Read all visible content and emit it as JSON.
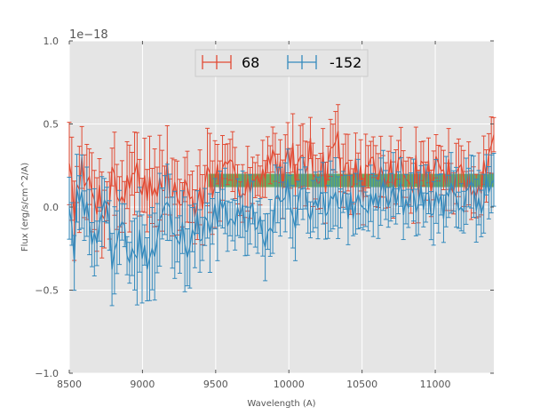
{
  "chart_data": {
    "type": "line",
    "xlabel": "Wavelength (A)",
    "ylabel": "Flux (erg/s/cm^2/A)",
    "offset_text": "1e−18",
    "xlim": [
      8500,
      11400
    ],
    "ylim": [
      -1.0,
      1.0
    ],
    "x_ticks": [
      {
        "value": 8500,
        "label": "8500"
      },
      {
        "value": 9000,
        "label": "9000"
      },
      {
        "value": 9500,
        "label": "9500"
      },
      {
        "value": 10000,
        "label": "10000"
      },
      {
        "value": 10500,
        "label": "10500"
      },
      {
        "value": 11000,
        "label": "11000"
      }
    ],
    "y_ticks": [
      {
        "value": 1.0,
        "label": "1.0"
      },
      {
        "value": 0.5,
        "label": "0.5"
      },
      {
        "value": 0.0,
        "label": "0.0"
      },
      {
        "value": -0.5,
        "label": "−0.5"
      },
      {
        "value": -1.0,
        "label": "−1.0"
      }
    ],
    "grid": true,
    "legend_position": "top-center",
    "band": {
      "x_start": 9450,
      "x_end": 11400,
      "y_low": 0.12,
      "y_high": 0.2,
      "color": "#4a9a3a"
    },
    "series": [
      {
        "name": "68",
        "color": "#e24a33",
        "x_start": 8500,
        "x_end": 11400,
        "anchors_x": [
          8500,
          8530,
          8560,
          8600,
          8650,
          8700,
          8750,
          8800,
          8850,
          8900,
          8950,
          9000,
          9050,
          9100,
          9150,
          9200,
          9250,
          9300,
          9350,
          9400,
          9450,
          9500,
          9600,
          9700,
          9800,
          9850,
          9900,
          9950,
          10000,
          10050,
          10100,
          10150,
          10200,
          10250,
          10300,
          10350,
          10400,
          10500,
          10600,
          10700,
          10800,
          10900,
          11000,
          11100,
          11200,
          11300,
          11360,
          11400
        ],
        "anchors_y": [
          0.33,
          0.0,
          0.24,
          0.14,
          0.1,
          0.05,
          0.02,
          0.2,
          0.05,
          0.1,
          0.28,
          0.15,
          0.12,
          0.06,
          0.18,
          0.12,
          0.03,
          0.08,
          0.05,
          0.02,
          0.2,
          0.15,
          0.16,
          0.18,
          0.14,
          0.2,
          0.27,
          0.22,
          0.3,
          0.24,
          0.34,
          0.3,
          0.26,
          0.2,
          0.42,
          0.3,
          0.22,
          0.16,
          0.18,
          0.2,
          0.21,
          0.18,
          0.22,
          0.18,
          0.12,
          0.2,
          0.22,
          0.43
        ],
        "noise": 0.13,
        "err_lo": 0.1,
        "err_hi": 0.22,
        "seed": 7
      },
      {
        "name": "-152",
        "color": "#348abd",
        "x_start": 8500,
        "x_end": 11400,
        "anchors_x": [
          8500,
          8530,
          8560,
          8600,
          8650,
          8700,
          8750,
          8800,
          8850,
          8900,
          8950,
          9000,
          9050,
          9100,
          9150,
          9200,
          9250,
          9300,
          9350,
          9400,
          9450,
          9500,
          9600,
          9700,
          9800,
          9850,
          9900,
          9950,
          10000,
          10050,
          10100,
          10200,
          10300,
          10400,
          10500,
          10600,
          10700,
          10800,
          10900,
          11000,
          11100,
          11200,
          11300,
          11400
        ],
        "anchors_y": [
          0.05,
          -0.3,
          0.14,
          0.0,
          -0.18,
          -0.12,
          -0.05,
          -0.35,
          -0.15,
          -0.25,
          -0.3,
          -0.2,
          -0.35,
          -0.2,
          -0.1,
          -0.05,
          -0.12,
          -0.2,
          -0.15,
          -0.1,
          -0.2,
          -0.05,
          -0.05,
          -0.08,
          -0.08,
          -0.18,
          -0.05,
          0.05,
          0.1,
          -0.05,
          0.05,
          0.0,
          0.02,
          -0.02,
          0.02,
          0.05,
          0.06,
          0.04,
          0.05,
          0.0,
          0.05,
          0.08,
          0.02,
          0.18
        ],
        "noise": 0.11,
        "err_lo": 0.1,
        "err_hi": 0.24,
        "seed": 13
      }
    ]
  }
}
